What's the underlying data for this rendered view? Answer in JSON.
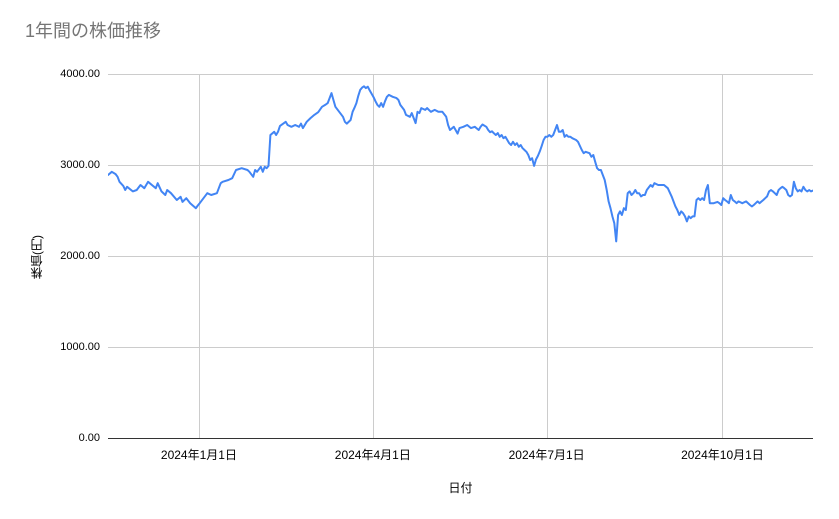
{
  "page": {
    "background": "#ffffff"
  },
  "chart": {
    "title": "1年間の株価推移",
    "x_axis_title": "日付",
    "y_axis_title": "株価(円)"
  },
  "chart_data": {
    "type": "line",
    "title": "1年間の株価推移",
    "xlabel": "日付",
    "ylabel": "株価(円)",
    "grid": true,
    "legend": "none",
    "y_range": [
      0,
      4000
    ],
    "x_range_days": [
      0,
      369
    ],
    "colors": {
      "line": "#4285f4",
      "grid": "#cccccc",
      "baseline": "#333333",
      "tick_text": "#000000",
      "axis_title_text": "#000000",
      "title_text": "#757575",
      "background": "#ffffff"
    },
    "y_ticks": [
      {
        "value": 0,
        "label": "0.00"
      },
      {
        "value": 1000,
        "label": "1000.00"
      },
      {
        "value": 2000,
        "label": "2000.00"
      },
      {
        "value": 3000,
        "label": "3000.00"
      },
      {
        "value": 4000,
        "label": "4000.00"
      }
    ],
    "x_ticks": [
      {
        "day": 47.6,
        "label": "2024年1月1日"
      },
      {
        "day": 138.6,
        "label": "2024年4月1日"
      },
      {
        "day": 229.6,
        "label": "2024年7月1日"
      },
      {
        "day": 321.6,
        "label": "2024年10月1日"
      }
    ],
    "series": [
      {
        "name": "株価",
        "color": "#4285f4",
        "points": [
          [
            0,
            2890
          ],
          [
            2,
            2925
          ],
          [
            4,
            2900
          ],
          [
            5,
            2870
          ],
          [
            6,
            2815
          ],
          [
            8,
            2770
          ],
          [
            9,
            2725
          ],
          [
            10,
            2760
          ],
          [
            13,
            2710
          ],
          [
            15,
            2725
          ],
          [
            17,
            2780
          ],
          [
            19,
            2745
          ],
          [
            21,
            2815
          ],
          [
            23,
            2780
          ],
          [
            25,
            2745
          ],
          [
            26,
            2800
          ],
          [
            28,
            2710
          ],
          [
            30,
            2670
          ],
          [
            31,
            2725
          ],
          [
            33,
            2690
          ],
          [
            36,
            2615
          ],
          [
            38,
            2650
          ],
          [
            39,
            2595
          ],
          [
            41,
            2635
          ],
          [
            43,
            2580
          ],
          [
            46,
            2525
          ],
          [
            47,
            2555
          ],
          [
            48,
            2580
          ],
          [
            50,
            2635
          ],
          [
            52,
            2690
          ],
          [
            54,
            2670
          ],
          [
            57,
            2690
          ],
          [
            59,
            2800
          ],
          [
            60,
            2815
          ],
          [
            63,
            2835
          ],
          [
            65,
            2855
          ],
          [
            67,
            2945
          ],
          [
            70,
            2965
          ],
          [
            73,
            2945
          ],
          [
            74,
            2925
          ],
          [
            76,
            2870
          ],
          [
            77,
            2945
          ],
          [
            78,
            2925
          ],
          [
            80,
            2980
          ],
          [
            81,
            2925
          ],
          [
            82,
            2980
          ],
          [
            83,
            2965
          ],
          [
            84,
            2990
          ],
          [
            85,
            3330
          ],
          [
            87,
            3365
          ],
          [
            88,
            3330
          ],
          [
            89,
            3365
          ],
          [
            90,
            3430
          ],
          [
            93,
            3475
          ],
          [
            94,
            3440
          ],
          [
            96,
            3420
          ],
          [
            98,
            3440
          ],
          [
            100,
            3420
          ],
          [
            101,
            3455
          ],
          [
            102,
            3405
          ],
          [
            104,
            3475
          ],
          [
            106,
            3515
          ],
          [
            108,
            3550
          ],
          [
            110,
            3580
          ],
          [
            112,
            3640
          ],
          [
            114,
            3665
          ],
          [
            115,
            3680
          ],
          [
            116,
            3735
          ],
          [
            117,
            3790
          ],
          [
            118,
            3715
          ],
          [
            119,
            3640
          ],
          [
            121,
            3585
          ],
          [
            123,
            3530
          ],
          [
            124,
            3475
          ],
          [
            125,
            3455
          ],
          [
            127,
            3495
          ],
          [
            128,
            3585
          ],
          [
            129,
            3630
          ],
          [
            130,
            3680
          ],
          [
            131,
            3760
          ],
          [
            132,
            3825
          ],
          [
            133,
            3850
          ],
          [
            134,
            3865
          ],
          [
            135,
            3845
          ],
          [
            136,
            3860
          ],
          [
            137,
            3820
          ],
          [
            139,
            3745
          ],
          [
            140,
            3700
          ],
          [
            141,
            3660
          ],
          [
            142,
            3640
          ],
          [
            143,
            3680
          ],
          [
            144,
            3640
          ],
          [
            145,
            3700
          ],
          [
            146,
            3750
          ],
          [
            147,
            3770
          ],
          [
            149,
            3750
          ],
          [
            151,
            3735
          ],
          [
            152,
            3715
          ],
          [
            153,
            3660
          ],
          [
            155,
            3605
          ],
          [
            156,
            3550
          ],
          [
            158,
            3530
          ],
          [
            159,
            3570
          ],
          [
            161,
            3460
          ],
          [
            162,
            3585
          ],
          [
            163,
            3570
          ],
          [
            164,
            3625
          ],
          [
            166,
            3605
          ],
          [
            167,
            3625
          ],
          [
            169,
            3585
          ],
          [
            171,
            3605
          ],
          [
            173,
            3585
          ],
          [
            175,
            3585
          ],
          [
            177,
            3530
          ],
          [
            178,
            3440
          ],
          [
            179,
            3385
          ],
          [
            181,
            3420
          ],
          [
            183,
            3345
          ],
          [
            184,
            3405
          ],
          [
            186,
            3420
          ],
          [
            188,
            3440
          ],
          [
            190,
            3405
          ],
          [
            192,
            3420
          ],
          [
            194,
            3385
          ],
          [
            195,
            3420
          ],
          [
            196,
            3445
          ],
          [
            198,
            3420
          ],
          [
            199,
            3385
          ],
          [
            200,
            3360
          ],
          [
            201,
            3370
          ],
          [
            202,
            3348
          ],
          [
            203,
            3330
          ],
          [
            204,
            3350
          ],
          [
            205,
            3310
          ],
          [
            206,
            3330
          ],
          [
            207,
            3295
          ],
          [
            208,
            3310
          ],
          [
            209,
            3275
          ],
          [
            210,
            3240
          ],
          [
            211,
            3220
          ],
          [
            212,
            3255
          ],
          [
            213,
            3220
          ],
          [
            214,
            3240
          ],
          [
            215,
            3200
          ],
          [
            216,
            3220
          ],
          [
            217,
            3185
          ],
          [
            218,
            3165
          ],
          [
            219,
            3145
          ],
          [
            220,
            3110
          ],
          [
            221,
            3055
          ],
          [
            222,
            3075
          ],
          [
            223,
            2990
          ],
          [
            224,
            3060
          ],
          [
            225,
            3100
          ],
          [
            226,
            3150
          ],
          [
            227,
            3210
          ],
          [
            228,
            3275
          ],
          [
            229,
            3310
          ],
          [
            230,
            3310
          ],
          [
            231,
            3330
          ],
          [
            232,
            3310
          ],
          [
            233,
            3330
          ],
          [
            234,
            3385
          ],
          [
            235,
            3440
          ],
          [
            236,
            3365
          ],
          [
            237,
            3365
          ],
          [
            238,
            3385
          ],
          [
            239,
            3310
          ],
          [
            240,
            3330
          ],
          [
            241,
            3310
          ],
          [
            242,
            3310
          ],
          [
            243,
            3295
          ],
          [
            245,
            3275
          ],
          [
            246,
            3255
          ],
          [
            248,
            3165
          ],
          [
            249,
            3130
          ],
          [
            250,
            3145
          ],
          [
            252,
            3130
          ],
          [
            253,
            3090
          ],
          [
            254,
            3110
          ],
          [
            255,
            3035
          ],
          [
            256,
            2965
          ],
          [
            257,
            2945
          ],
          [
            258,
            2945
          ],
          [
            259,
            2890
          ],
          [
            260,
            2835
          ],
          [
            261,
            2725
          ],
          [
            262,
            2600
          ],
          [
            263,
            2525
          ],
          [
            264,
            2435
          ],
          [
            265,
            2360
          ],
          [
            266,
            2160
          ],
          [
            267,
            2450
          ],
          [
            268,
            2490
          ],
          [
            269,
            2450
          ],
          [
            270,
            2525
          ],
          [
            271,
            2505
          ],
          [
            272,
            2690
          ],
          [
            273,
            2710
          ],
          [
            274,
            2670
          ],
          [
            275,
            2690
          ],
          [
            276,
            2725
          ],
          [
            277,
            2690
          ],
          [
            278,
            2690
          ],
          [
            279,
            2655
          ],
          [
            280,
            2670
          ],
          [
            281,
            2670
          ],
          [
            282,
            2725
          ],
          [
            284,
            2780
          ],
          [
            285,
            2760
          ],
          [
            286,
            2800
          ],
          [
            288,
            2780
          ],
          [
            290,
            2780
          ],
          [
            291,
            2780
          ],
          [
            293,
            2745
          ],
          [
            295,
            2655
          ],
          [
            297,
            2545
          ],
          [
            298,
            2505
          ],
          [
            299,
            2450
          ],
          [
            300,
            2490
          ],
          [
            301,
            2470
          ],
          [
            302,
            2435
          ],
          [
            303,
            2380
          ],
          [
            304,
            2435
          ],
          [
            305,
            2415
          ],
          [
            306,
            2435
          ],
          [
            307,
            2435
          ],
          [
            308,
            2615
          ],
          [
            309,
            2635
          ],
          [
            310,
            2615
          ],
          [
            311,
            2635
          ],
          [
            312,
            2615
          ],
          [
            313,
            2725
          ],
          [
            314,
            2780
          ],
          [
            315,
            2580
          ],
          [
            317,
            2580
          ],
          [
            319,
            2595
          ],
          [
            320,
            2580
          ],
          [
            321,
            2560
          ],
          [
            322,
            2635
          ],
          [
            323,
            2615
          ],
          [
            324,
            2600
          ],
          [
            325,
            2580
          ],
          [
            326,
            2670
          ],
          [
            327,
            2615
          ],
          [
            328,
            2600
          ],
          [
            329,
            2580
          ],
          [
            330,
            2600
          ],
          [
            332,
            2580
          ],
          [
            334,
            2600
          ],
          [
            336,
            2560
          ],
          [
            337,
            2545
          ],
          [
            338,
            2560
          ],
          [
            339,
            2580
          ],
          [
            340,
            2600
          ],
          [
            341,
            2580
          ],
          [
            343,
            2615
          ],
          [
            344,
            2635
          ],
          [
            345,
            2655
          ],
          [
            346,
            2710
          ],
          [
            347,
            2725
          ],
          [
            348,
            2710
          ],
          [
            349,
            2690
          ],
          [
            350,
            2670
          ],
          [
            351,
            2725
          ],
          [
            352,
            2745
          ],
          [
            353,
            2760
          ],
          [
            354,
            2745
          ],
          [
            355,
            2725
          ],
          [
            356,
            2670
          ],
          [
            357,
            2655
          ],
          [
            358,
            2670
          ],
          [
            359,
            2815
          ],
          [
            360,
            2745
          ],
          [
            361,
            2710
          ],
          [
            362,
            2725
          ],
          [
            363,
            2710
          ],
          [
            364,
            2760
          ],
          [
            365,
            2725
          ],
          [
            366,
            2710
          ],
          [
            367,
            2725
          ],
          [
            368,
            2710
          ],
          [
            369,
            2720
          ]
        ]
      }
    ]
  }
}
